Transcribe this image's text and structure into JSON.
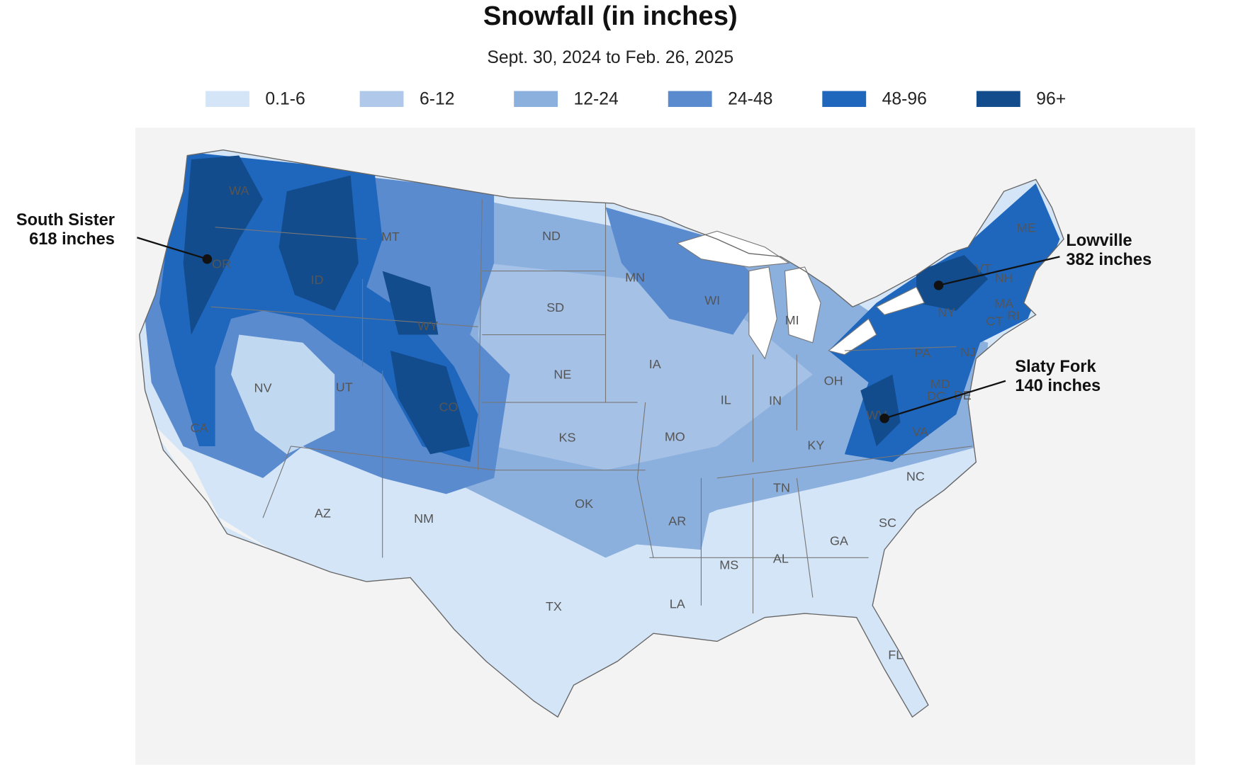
{
  "header": {
    "title": "Snowfall (in inches)",
    "subtitle": "Sept. 30, 2024 to Feb. 26, 2025"
  },
  "legend": [
    {
      "label": "0.1-6",
      "color": "#d4e5f7"
    },
    {
      "label": "6-12",
      "color": "#b0c9ea"
    },
    {
      "label": "12-24",
      "color": "#8cb0de"
    },
    {
      "label": "24-48",
      "color": "#5b8bcf"
    },
    {
      "label": "48-96",
      "color": "#1f66bd"
    },
    {
      "label": "96+",
      "color": "#134c8c"
    }
  ],
  "state_labels": [
    "WA",
    "OR",
    "CA",
    "NV",
    "ID",
    "MT",
    "WY",
    "UT",
    "CO",
    "AZ",
    "NM",
    "ND",
    "SD",
    "NE",
    "KS",
    "OK",
    "TX",
    "MN",
    "IA",
    "MO",
    "AR",
    "LA",
    "WI",
    "IL",
    "MI",
    "IN",
    "OH",
    "KY",
    "TN",
    "MS",
    "AL",
    "GA",
    "FL",
    "SC",
    "NC",
    "VA",
    "WV",
    "PA",
    "NY",
    "ME",
    "VT",
    "NH",
    "MA",
    "CT",
    "RI",
    "NJ",
    "MD",
    "DE",
    "DC"
  ],
  "annotations": [
    {
      "name": "South Sister",
      "amount": "618 inches"
    },
    {
      "name": "Lowville",
      "amount": "382 inches"
    },
    {
      "name": "Slaty Fork",
      "amount": "140 inches"
    }
  ]
}
